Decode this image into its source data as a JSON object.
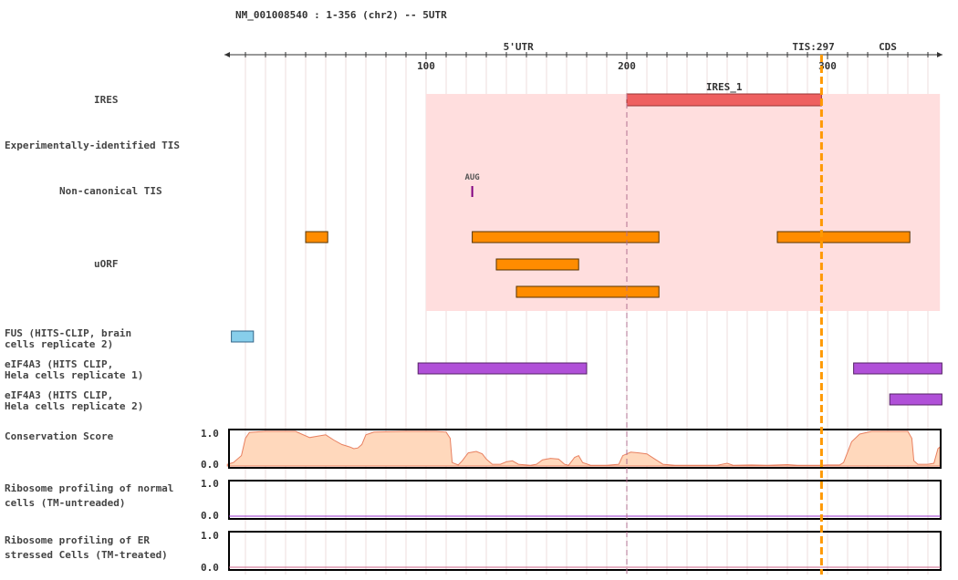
{
  "header": {
    "title": "NM_001008540 : 1-356 (chr2) -- 5UTR"
  },
  "colors": {
    "utr": "#cc0000",
    "tis": "#ff9900",
    "cds": "#009900",
    "ires_region": "#ffdede",
    "ires_bar": "#ee6060",
    "aug": "#800080",
    "uorf": "#ff8c00",
    "fus": "#87ceeb",
    "eif4a3": "#b050d8",
    "conservation": "#ffd8bc",
    "conservation_line": "#e88060",
    "ribo_line": "#9933cc"
  },
  "axis": {
    "start": 1,
    "end": 356,
    "ticks": [
      100,
      200,
      300
    ]
  },
  "regions": {
    "utr_label": "5'UTR",
    "tis_label": "TIS:297",
    "tis_pos": 297,
    "cds_label": "CDS"
  },
  "tracks": {
    "ires": {
      "label": "IRES",
      "region": [
        100,
        356
      ],
      "features": [
        {
          "name": "IRES_1",
          "start": 200,
          "end": 297
        }
      ]
    },
    "exp_tis": {
      "label": "Experimentally-identified TIS"
    },
    "noncanonical_tis": {
      "label": "Non-canonical TIS",
      "features": [
        {
          "name": "AUG",
          "pos": 123
        }
      ]
    },
    "uorf": {
      "label": "uORF",
      "features": [
        {
          "start": 40,
          "end": 51,
          "row": 0
        },
        {
          "start": 123,
          "end": 216,
          "row": 0
        },
        {
          "start": 275,
          "end": 341,
          "row": 0
        },
        {
          "start": 135,
          "end": 176,
          "row": 1
        },
        {
          "start": 145,
          "end": 216,
          "row": 2
        }
      ]
    },
    "fus": {
      "label_line1": "FUS (HITS-CLIP, brain",
      "label_line2": "cells replicate 2)",
      "features": [
        {
          "start": 3,
          "end": 14
        }
      ]
    },
    "eif4a3_1": {
      "label_line1": "eIF4A3 (HITS CLIP,",
      "label_line2": "Hela cells replicate 1)",
      "features": [
        {
          "start": 96,
          "end": 180
        },
        {
          "start": 313,
          "end": 357
        }
      ]
    },
    "eif4a3_2": {
      "label_line1": "eIF4A3 (HITS CLIP,",
      "label_line2": "Hela cells replicate 2)",
      "features": [
        {
          "start": 331,
          "end": 357
        }
      ]
    },
    "conservation": {
      "label": "Conservation Score",
      "ymax_label": "1.0",
      "ymin_label": "0.0",
      "values": [
        [
          1,
          0.05
        ],
        [
          4,
          0.1
        ],
        [
          8,
          0.3
        ],
        [
          10,
          0.8
        ],
        [
          12,
          0.97
        ],
        [
          20,
          1.0
        ],
        [
          35,
          1.0
        ],
        [
          38,
          0.92
        ],
        [
          42,
          0.82
        ],
        [
          46,
          0.86
        ],
        [
          50,
          0.9
        ],
        [
          54,
          0.75
        ],
        [
          58,
          0.62
        ],
        [
          62,
          0.55
        ],
        [
          64,
          0.5
        ],
        [
          66,
          0.52
        ],
        [
          68,
          0.62
        ],
        [
          70,
          0.9
        ],
        [
          74,
          0.98
        ],
        [
          90,
          1.0
        ],
        [
          105,
          1.0
        ],
        [
          110,
          0.98
        ],
        [
          112,
          0.8
        ],
        [
          113,
          0.1
        ],
        [
          116,
          0.03
        ],
        [
          118,
          0.15
        ],
        [
          121,
          0.38
        ],
        [
          125,
          0.42
        ],
        [
          128,
          0.35
        ],
        [
          130,
          0.2
        ],
        [
          133,
          0.05
        ],
        [
          137,
          0.05
        ],
        [
          140,
          0.12
        ],
        [
          143,
          0.15
        ],
        [
          146,
          0.05
        ],
        [
          152,
          0.02
        ],
        [
          155,
          0.05
        ],
        [
          158,
          0.18
        ],
        [
          162,
          0.22
        ],
        [
          166,
          0.2
        ],
        [
          169,
          0.05
        ],
        [
          171,
          0.02
        ],
        [
          174,
          0.25
        ],
        [
          176,
          0.3
        ],
        [
          178,
          0.1
        ],
        [
          182,
          0.02
        ],
        [
          190,
          0.02
        ],
        [
          196,
          0.05
        ],
        [
          198,
          0.3
        ],
        [
          202,
          0.4
        ],
        [
          206,
          0.38
        ],
        [
          210,
          0.35
        ],
        [
          214,
          0.2
        ],
        [
          218,
          0.05
        ],
        [
          224,
          0.02
        ],
        [
          235,
          0.02
        ],
        [
          245,
          0.02
        ],
        [
          250,
          0.08
        ],
        [
          253,
          0.02
        ],
        [
          262,
          0.03
        ],
        [
          270,
          0.02
        ],
        [
          280,
          0.04
        ],
        [
          285,
          0.02
        ],
        [
          296,
          0.02
        ],
        [
          300,
          0.03
        ],
        [
          306,
          0.03
        ],
        [
          308,
          0.1
        ],
        [
          310,
          0.4
        ],
        [
          312,
          0.7
        ],
        [
          316,
          0.92
        ],
        [
          322,
          1.0
        ],
        [
          340,
          1.0
        ],
        [
          342,
          0.8
        ],
        [
          343,
          0.15
        ],
        [
          345,
          0.05
        ],
        [
          350,
          0.05
        ],
        [
          353,
          0.08
        ],
        [
          355,
          0.5
        ],
        [
          356,
          0.55
        ]
      ]
    },
    "ribo_normal": {
      "label_line1": "Ribosome profiling of normal",
      "label_line2": "cells (TM-untreaded)",
      "ymax_label": "1.0",
      "ymin_label": "0.0"
    },
    "ribo_er": {
      "label_line1": "Ribosome profiling of ER",
      "label_line2": "stressed Cells (TM-treated)",
      "ymax_label": "1.0",
      "ymin_label": "0.0"
    }
  }
}
